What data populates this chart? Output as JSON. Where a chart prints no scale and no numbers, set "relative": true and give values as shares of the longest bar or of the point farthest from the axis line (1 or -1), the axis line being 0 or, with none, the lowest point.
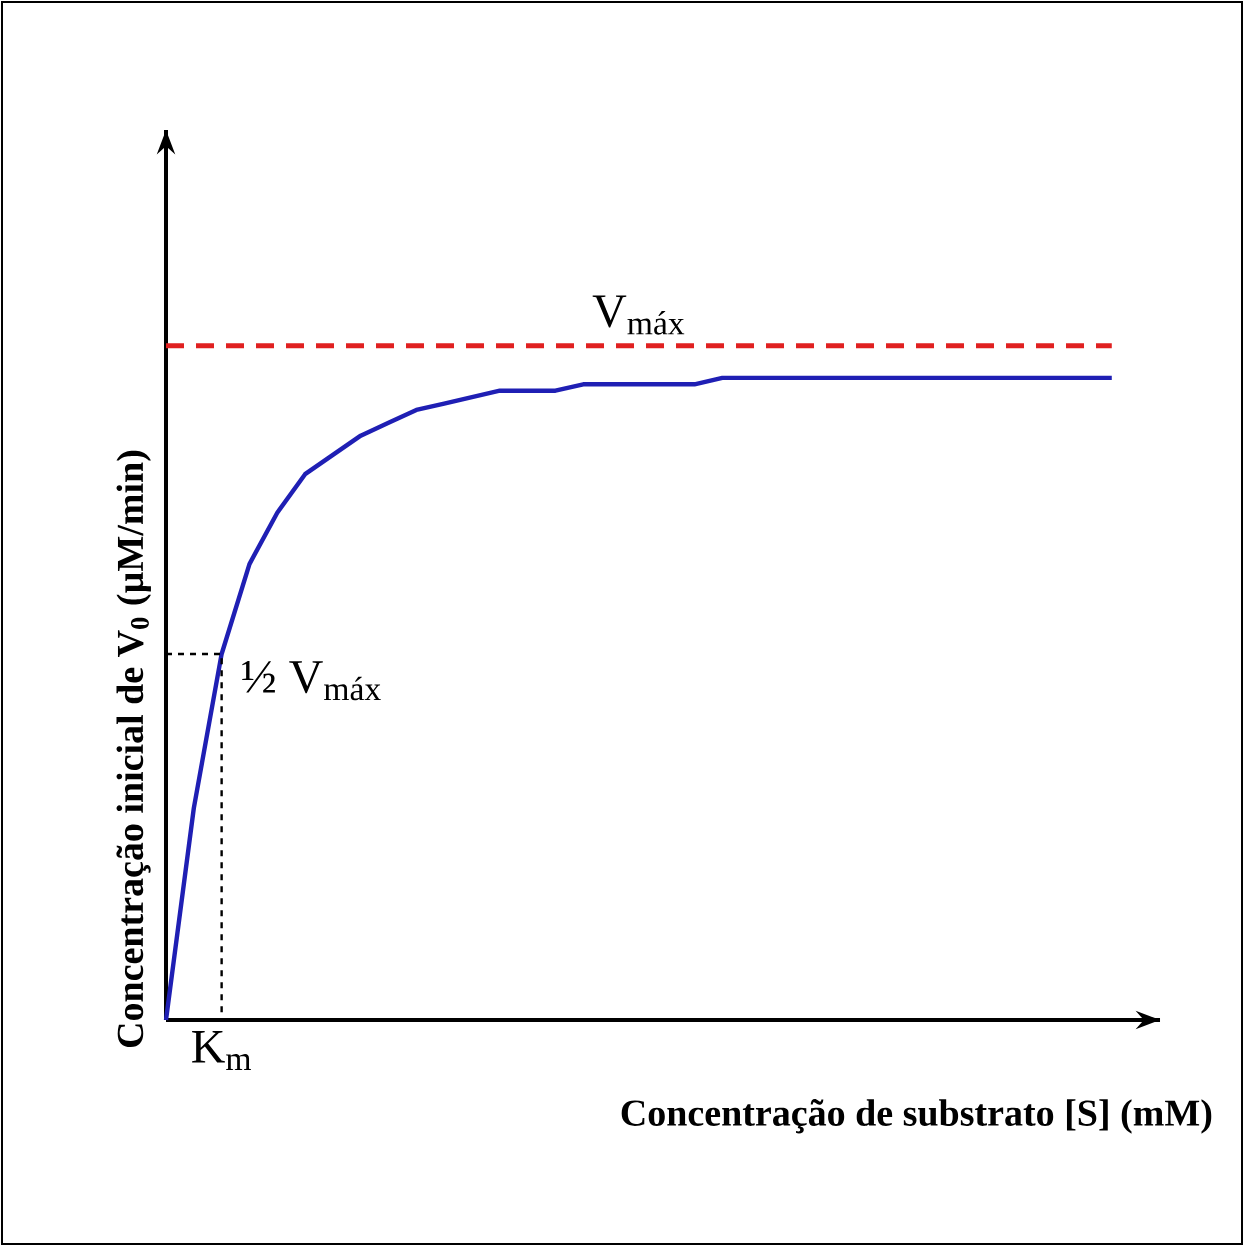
{
  "chart_data": {
    "type": "line",
    "relative": true,
    "xlabel": "Concentração de substrato [S] (mM)",
    "ylabel": "Concentração inicial de V$_{0}$ (µM/min)",
    "categories": [
      null,
      null,
      null,
      null,
      null,
      null,
      null,
      null,
      null,
      null,
      null,
      null,
      null,
      null,
      null,
      null,
      null,
      null,
      null,
      null,
      null,
      null,
      null,
      null,
      null,
      null,
      null,
      null,
      null,
      null,
      null,
      null,
      null,
      null,
      null
    ],
    "series": [
      {
        "color": "#1f1fb4",
        "values": [
          0,
          0.33,
          0.57,
          0.71,
          0.79,
          0.85,
          0.88,
          0.91,
          0.93,
          0.95,
          0.96,
          0.97,
          0.98,
          0.98,
          0.98,
          0.99,
          0.99,
          0.99,
          0.99,
          0.99,
          1,
          1,
          1,
          1,
          1,
          1,
          1,
          1,
          1,
          1,
          1,
          1,
          1,
          1,
          1
        ]
      }
    ],
    "ref_lines": [
      {
        "axis": "y",
        "value": 1.05,
        "label": "V$_{máx}$",
        "color": "#e02020",
        "line_style": "dashed"
      },
      {
        "axis": "y",
        "value": 0.57,
        "label": "½ V$_{máx}$",
        "color": "#000000",
        "line_style": "dotted"
      }
    ],
    "annotations": [
      "K$_{m}$"
    ],
    "marker": "none",
    "line_style": "solid",
    "tick_labels": false
  }
}
